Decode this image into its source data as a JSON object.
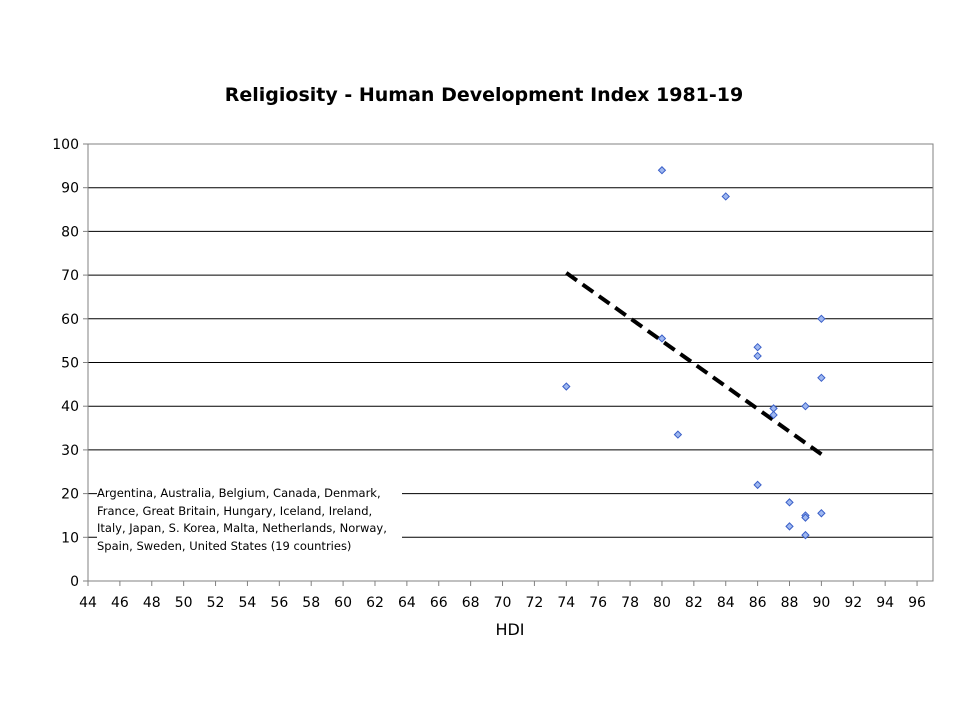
{
  "chart_data": {
    "type": "scatter",
    "title": "Religiosity - Human Development Index 1981-19",
    "xlabel": "HDI",
    "ylabel": "",
    "xlim": [
      44,
      97
    ],
    "ylim": [
      0,
      100
    ],
    "xticks": [
      44,
      46,
      48,
      50,
      52,
      54,
      56,
      58,
      60,
      62,
      64,
      66,
      68,
      70,
      72,
      74,
      76,
      78,
      80,
      82,
      84,
      86,
      88,
      90,
      92,
      94,
      96
    ],
    "yticks": [
      0,
      10,
      20,
      30,
      40,
      50,
      60,
      70,
      80,
      90,
      100
    ],
    "grid": "horizontal",
    "points": [
      {
        "x": 74,
        "y": 44.5
      },
      {
        "x": 80,
        "y": 94
      },
      {
        "x": 80,
        "y": 55.5
      },
      {
        "x": 81,
        "y": 33.5
      },
      {
        "x": 84,
        "y": 88
      },
      {
        "x": 86,
        "y": 53.5
      },
      {
        "x": 86,
        "y": 51.5
      },
      {
        "x": 86,
        "y": 22
      },
      {
        "x": 87,
        "y": 39.5
      },
      {
        "x": 87,
        "y": 38
      },
      {
        "x": 88,
        "y": 18
      },
      {
        "x": 88,
        "y": 12.5
      },
      {
        "x": 89,
        "y": 40
      },
      {
        "x": 89,
        "y": 15
      },
      {
        "x": 89,
        "y": 14.5
      },
      {
        "x": 89,
        "y": 10.5
      },
      {
        "x": 90,
        "y": 60
      },
      {
        "x": 90,
        "y": 46.5
      },
      {
        "x": 90,
        "y": 15.5
      }
    ],
    "trendline": {
      "x": [
        74,
        90
      ],
      "y": [
        70.5,
        29
      ],
      "style": "dashed"
    },
    "annotation": "Argentina, Australia, Belgium, Canada, Denmark, France,  Great Britain, Hungary, Iceland, Ireland, Italy, Japan, S. Korea, Malta, Netherlands, Norway, Spain, Sweden, United States (19 countries)",
    "colors": {
      "marker_fill": "#9fb8f0",
      "marker_stroke": "#3a5fc8",
      "trendline": "#000000",
      "grid": "#000000"
    }
  }
}
